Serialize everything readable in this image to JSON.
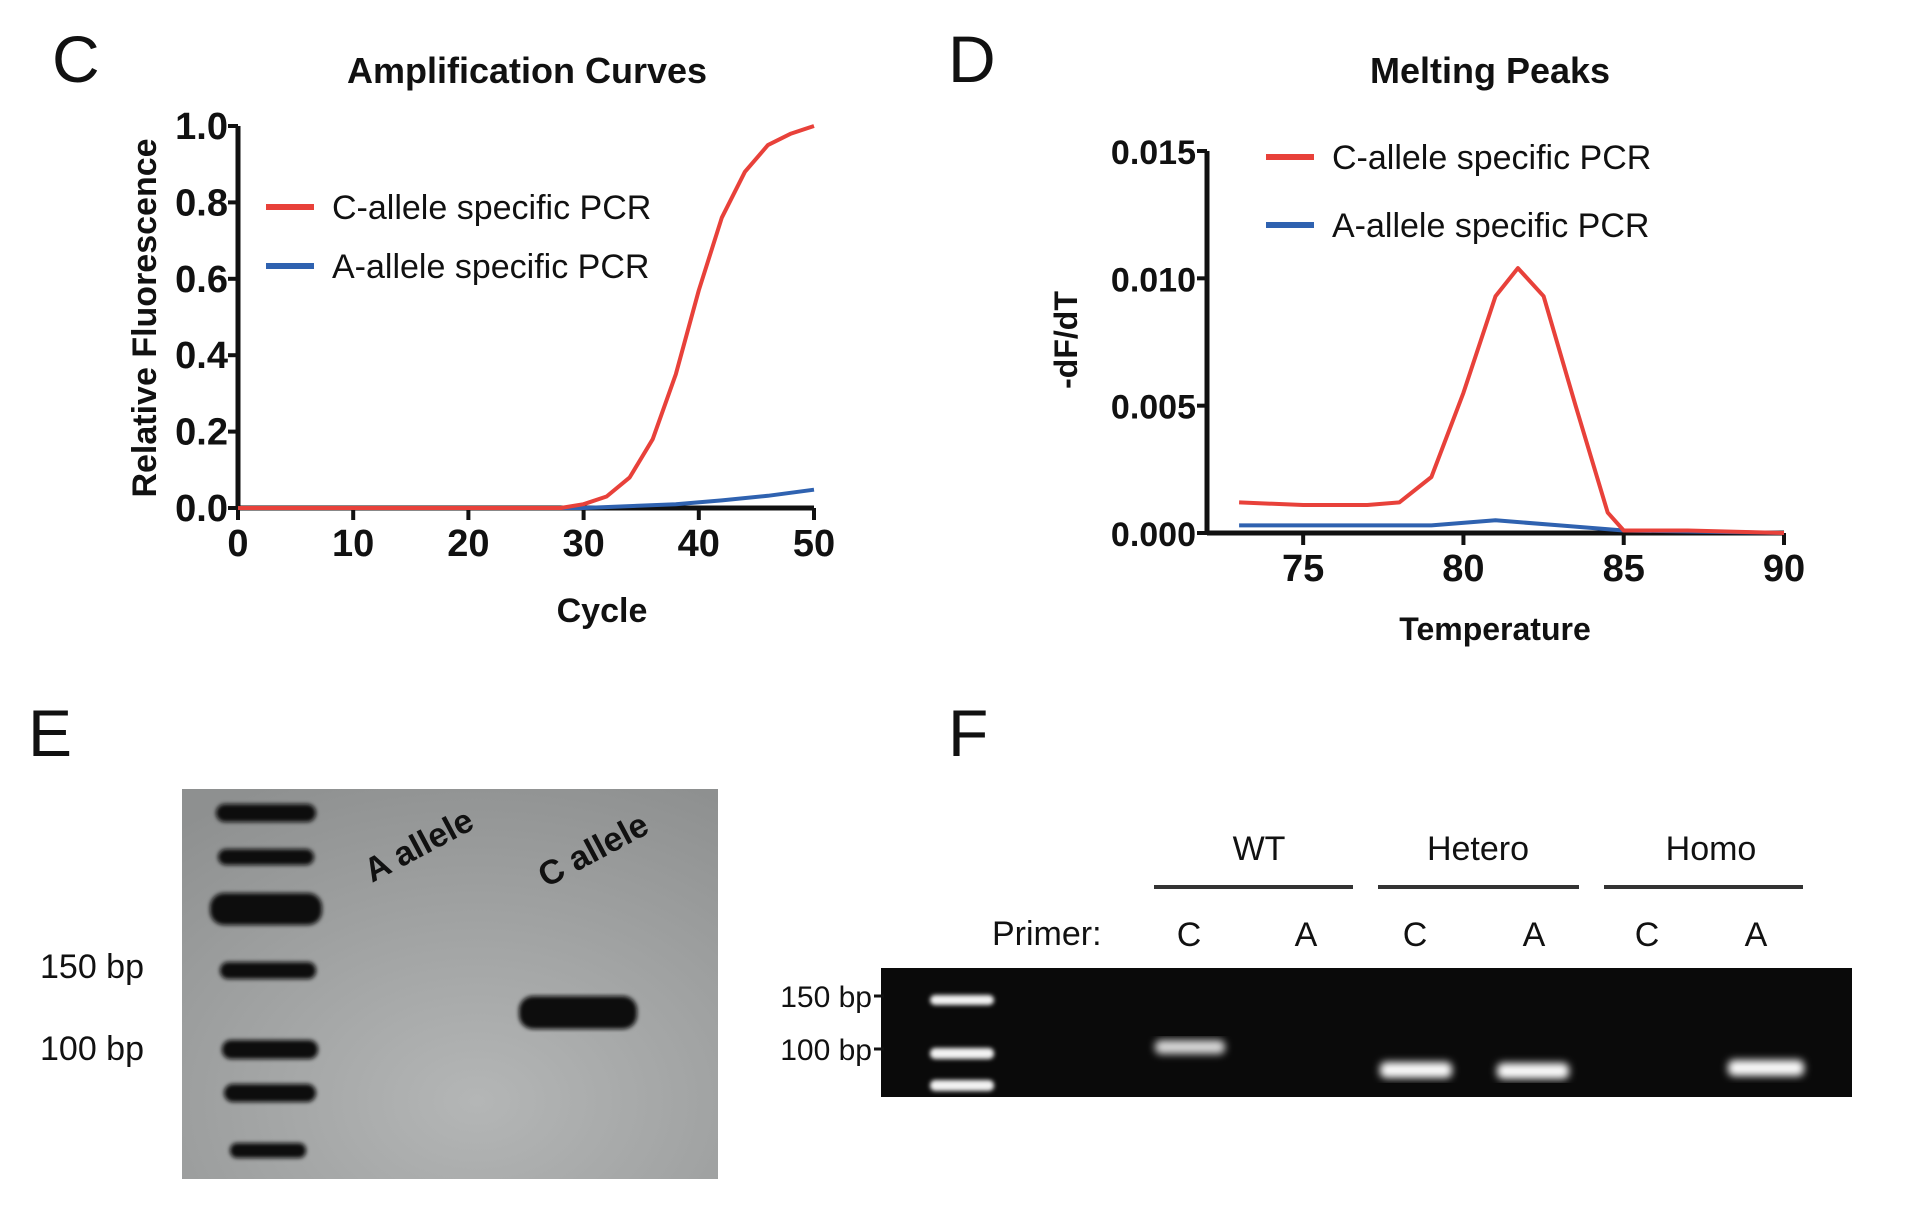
{
  "panels": {
    "c": "C",
    "d": "D",
    "e": "E",
    "f": "F"
  },
  "chart_data": [
    {
      "type": "line",
      "title": "Amplification Curves",
      "xlabel": "Cycle",
      "ylabel": "Relative Fluorescence",
      "xlim": [
        0,
        50
      ],
      "ylim": [
        0,
        1.0
      ],
      "xticks": [
        "0",
        "10",
        "20",
        "30",
        "40",
        "50"
      ],
      "yticks": [
        "0.0",
        "0.2",
        "0.4",
        "0.6",
        "0.8",
        "1.0"
      ],
      "grid": false,
      "legend_position": "top-left",
      "series": [
        {
          "name": "C-allele specific PCR",
          "color": "#e8413a",
          "x": [
            0,
            10,
            20,
            28,
            30,
            32,
            34,
            36,
            38,
            40,
            42,
            44,
            46,
            48,
            50
          ],
          "y": [
            0,
            0,
            0,
            0,
            0.01,
            0.03,
            0.08,
            0.18,
            0.35,
            0.57,
            0.76,
            0.88,
            0.95,
            0.98,
            1.0
          ]
        },
        {
          "name": "A-allele specific PCR",
          "color": "#2f62b0",
          "x": [
            0,
            10,
            20,
            30,
            34,
            38,
            42,
            46,
            50
          ],
          "y": [
            0,
            0,
            0,
            0,
            0.005,
            0.01,
            0.02,
            0.032,
            0.048
          ]
        }
      ]
    },
    {
      "type": "line",
      "title": "Melting Peaks",
      "xlabel": "Temperature",
      "ylabel": "-dF/dT",
      "xlim": [
        72,
        90
      ],
      "ylim": [
        0,
        0.015
      ],
      "xticks": [
        "75",
        "80",
        "85",
        "90"
      ],
      "xtick_values": [
        75,
        80,
        85,
        90
      ],
      "yticks": [
        "0.000",
        "0.005",
        "0.010",
        "0.015"
      ],
      "grid": false,
      "legend_position": "top-right",
      "series": [
        {
          "name": "C-allele specific PCR",
          "color": "#e8413a",
          "x": [
            73,
            75,
            77,
            78,
            79,
            80,
            81,
            81.7,
            82.5,
            83.5,
            84.5,
            85,
            87,
            90
          ],
          "y": [
            0.0012,
            0.0011,
            0.0011,
            0.0012,
            0.0022,
            0.0055,
            0.0093,
            0.0104,
            0.0093,
            0.005,
            0.0008,
            0.0001,
            0.0001,
            0
          ]
        },
        {
          "name": "A-allele specific PCR",
          "color": "#2f62b0",
          "x": [
            73,
            79,
            81,
            83,
            85,
            90
          ],
          "y": [
            0.0003,
            0.0003,
            0.0005,
            0.0003,
            0.0001,
            0
          ]
        }
      ]
    }
  ],
  "gel_e": {
    "lanes": [
      "A allele",
      "C allele"
    ],
    "markers": [
      "150 bp",
      "100 bp"
    ]
  },
  "gel_f": {
    "groups": [
      "WT",
      "Hetero",
      "Homo"
    ],
    "primer_label": "Primer:",
    "primers": [
      "C",
      "A",
      "C",
      "A",
      "C",
      "A"
    ],
    "markers": [
      "150 bp",
      "100 bp"
    ]
  }
}
